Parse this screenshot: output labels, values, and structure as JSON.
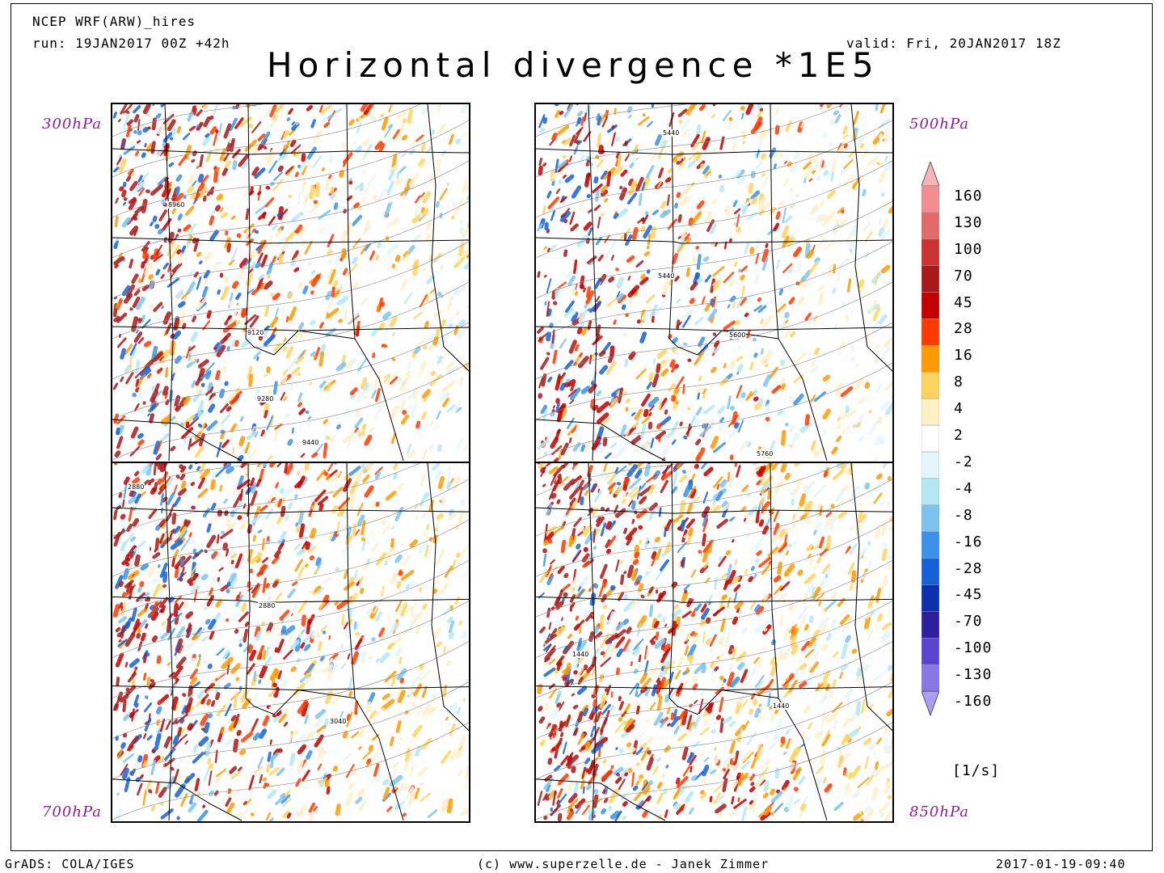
{
  "header": {
    "model": "NCEP WRF(ARW)_hires",
    "run": "run: 19JAN2017 00Z +42h",
    "valid": "valid: Fri, 20JAN2017 18Z",
    "title": "Horizontal divergence *1E5"
  },
  "panels": [
    {
      "level": "300hPa",
      "contours": [
        "8960",
        "9120",
        "9280",
        "9440"
      ],
      "warm": 0.4,
      "cool": 0.26
    },
    {
      "level": "500hPa",
      "contours": [
        "5440",
        "5440",
        "5600",
        "5760"
      ],
      "warm": 0.36,
      "cool": 0.22
    },
    {
      "level": "700hPa",
      "contours": [
        "2880",
        "2880",
        "3040"
      ],
      "warm": 0.46,
      "cool": 0.22
    },
    {
      "level": "850hPa",
      "contours": [
        "1440",
        "1440"
      ],
      "warm": 0.58,
      "cool": 0.26
    }
  ],
  "colorbar": {
    "labels": [
      "160",
      "130",
      "100",
      "70",
      "45",
      "28",
      "16",
      "8",
      "4",
      "2",
      "-2",
      "-4",
      "-8",
      "-16",
      "-28",
      "-45",
      "-70",
      "-100",
      "-130",
      "-160"
    ],
    "colors": [
      "#f7b4b8",
      "#f28e92",
      "#e26a6a",
      "#cc3333",
      "#a81a1a",
      "#c20000",
      "#ff3a00",
      "#ff9a00",
      "#ffd35f",
      "#fff0c8",
      "#ffffff",
      "#e3f6fb",
      "#b4e8f5",
      "#7dc3f2",
      "#3a92ea",
      "#1562d6",
      "#0c2fae",
      "#2f1f9e",
      "#5a43cf",
      "#8a77e6",
      "#a99ef4"
    ],
    "unit": "[1/s]"
  },
  "footer": {
    "left": "GrADS: COLA/IGES",
    "center": "(c) www.superzelle.de - Janek Zimmer",
    "right": "2017-01-19-09:40"
  }
}
